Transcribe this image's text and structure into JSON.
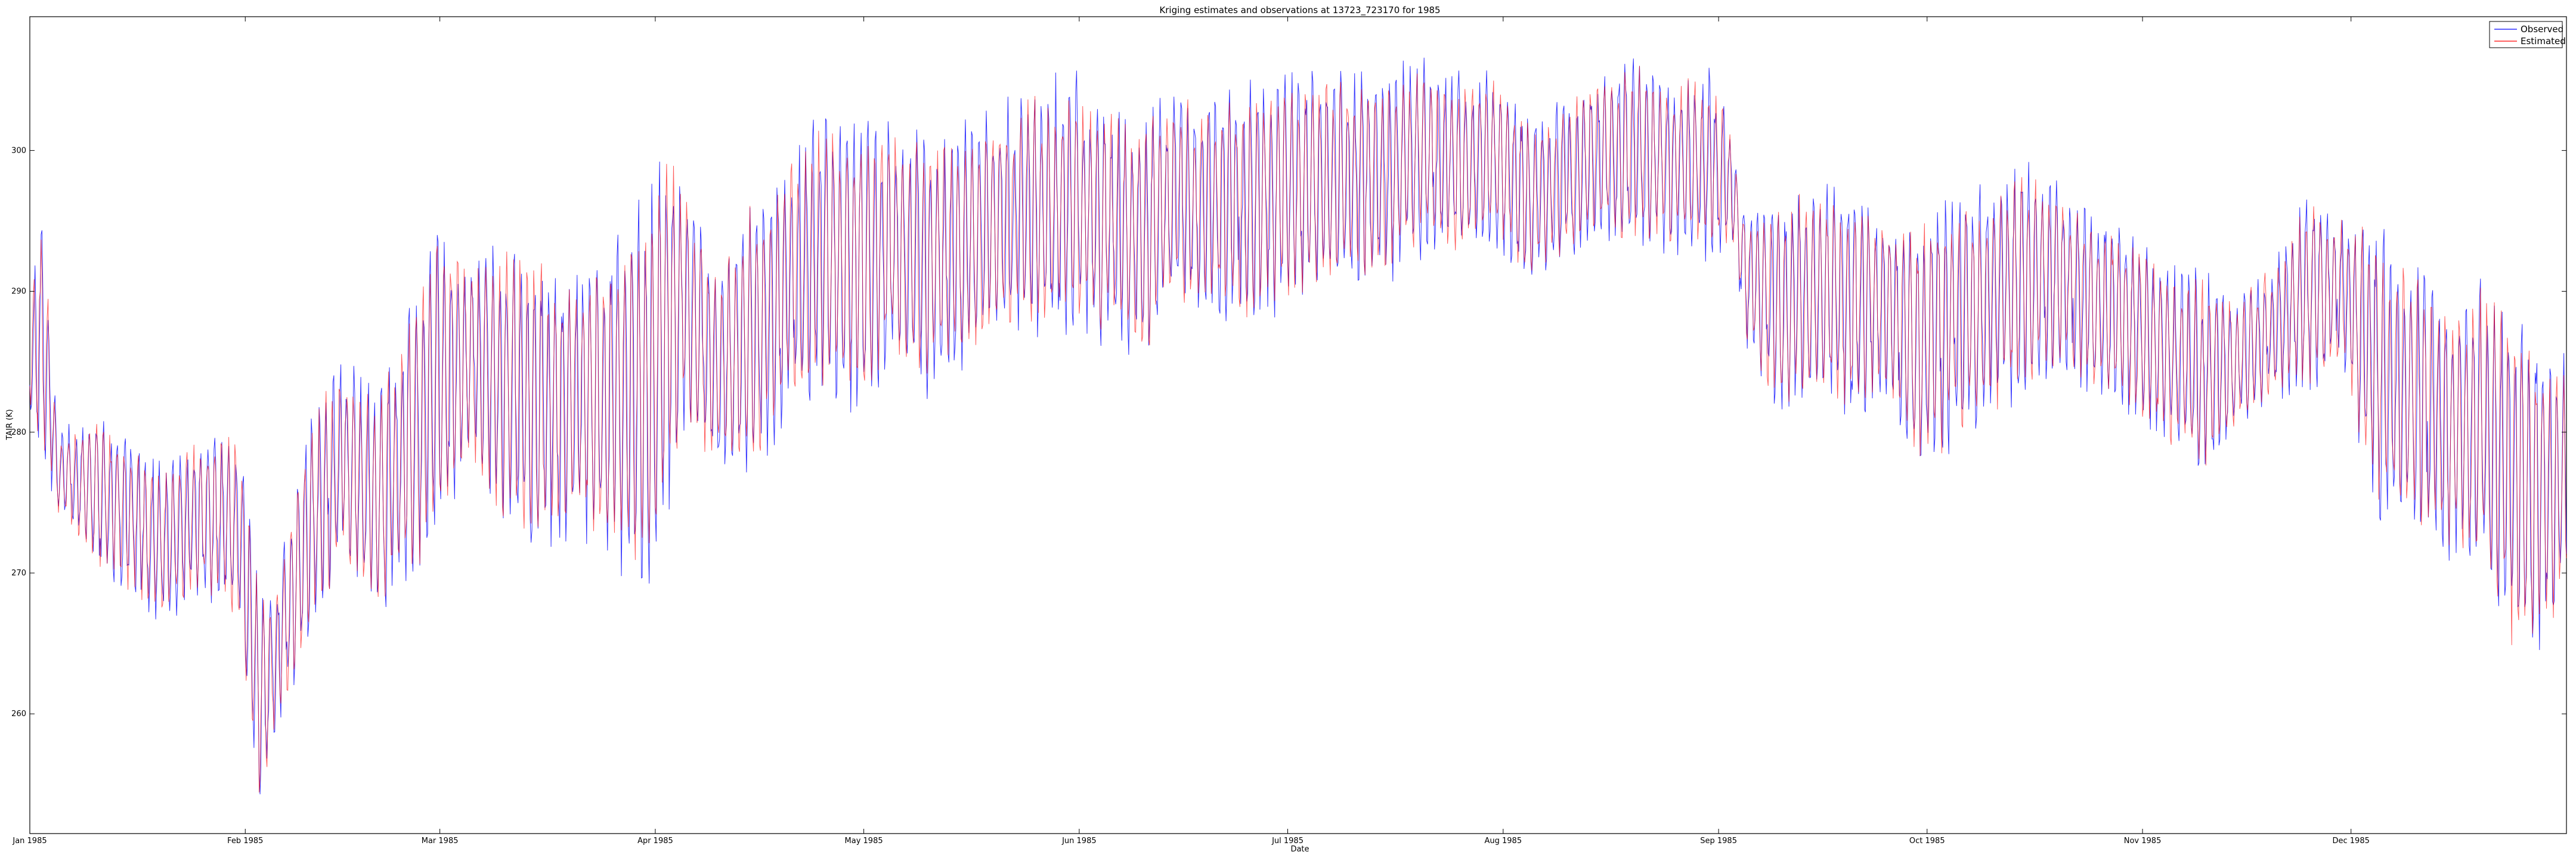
{
  "chart_data": {
    "type": "line",
    "title": "Kriging estimates and observations at 13723_723170 for 1985",
    "xlabel": "Date",
    "ylabel": "TAIR (K)",
    "x_range": [
      "1985-01-01",
      "1986-01-01"
    ],
    "ylim": [
      251.5,
      309.5
    ],
    "x_ticks": [
      {
        "date": "1985-01-01",
        "label": "Jan 1985"
      },
      {
        "date": "1985-02-01",
        "label": "Feb 1985"
      },
      {
        "date": "1985-03-01",
        "label": "Mar 1985"
      },
      {
        "date": "1985-04-01",
        "label": "Apr 1985"
      },
      {
        "date": "1985-05-01",
        "label": "May 1985"
      },
      {
        "date": "1985-06-01",
        "label": "Jun 1985"
      },
      {
        "date": "1985-07-01",
        "label": "Jul 1985"
      },
      {
        "date": "1985-08-01",
        "label": "Aug 1985"
      },
      {
        "date": "1985-09-01",
        "label": "Sep 1985"
      },
      {
        "date": "1985-10-01",
        "label": "Oct 1985"
      },
      {
        "date": "1985-11-01",
        "label": "Nov 1985"
      },
      {
        "date": "1985-12-01",
        "label": "Dec 1985"
      }
    ],
    "y_ticks": [
      260,
      270,
      280,
      290,
      300
    ],
    "grid": false,
    "legend_position": "top-right",
    "series_meta": [
      {
        "name": "Observed",
        "color": "#0000ff"
      },
      {
        "name": "Estimated",
        "color": "#ff0000"
      }
    ],
    "daily_envelope": {
      "dates": [
        "1985-01-01",
        "1985-01-03",
        "1985-01-05",
        "1985-01-10",
        "1985-01-15",
        "1985-01-20",
        "1985-01-25",
        "1985-01-31",
        "1985-02-03",
        "1985-02-05",
        "1985-02-10",
        "1985-02-15",
        "1985-02-20",
        "1985-02-25",
        "1985-03-01",
        "1985-03-05",
        "1985-03-10",
        "1985-03-15",
        "1985-03-20",
        "1985-03-25",
        "1985-03-31",
        "1985-04-03",
        "1985-04-05",
        "1985-04-10",
        "1985-04-15",
        "1985-04-20",
        "1985-04-25",
        "1985-04-30",
        "1985-05-05",
        "1985-05-10",
        "1985-05-15",
        "1985-05-20",
        "1985-05-25",
        "1985-05-31",
        "1985-06-05",
        "1985-06-10",
        "1985-06-15",
        "1985-06-20",
        "1985-06-25",
        "1985-06-30",
        "1985-07-05",
        "1985-07-10",
        "1985-07-15",
        "1985-07-20",
        "1985-07-25",
        "1985-07-31",
        "1985-08-05",
        "1985-08-10",
        "1985-08-15",
        "1985-08-20",
        "1985-08-25",
        "1985-08-31",
        "1985-09-03",
        "1985-09-05",
        "1985-09-10",
        "1985-09-15",
        "1985-09-20",
        "1985-09-25",
        "1985-09-30",
        "1985-10-05",
        "1985-10-10",
        "1985-10-15",
        "1985-10-20",
        "1985-10-25",
        "1985-10-31",
        "1985-11-05",
        "1985-11-10",
        "1985-11-15",
        "1985-11-20",
        "1985-11-25",
        "1985-11-30",
        "1985-12-05",
        "1985-12-10",
        "1985-12-15",
        "1985-12-20",
        "1985-12-25",
        "1985-12-31"
      ],
      "low": [
        280,
        277,
        274,
        270,
        268,
        266,
        268,
        266,
        252,
        258,
        264,
        270,
        266,
        268,
        272,
        278,
        272,
        270,
        272,
        270,
        268,
        272,
        280,
        276,
        276,
        280,
        282,
        280,
        284,
        282,
        284,
        286,
        286,
        286,
        286,
        284,
        288,
        288,
        287,
        288,
        289,
        290,
        290,
        292,
        292,
        293,
        290,
        292,
        293,
        292,
        292,
        292,
        292,
        286,
        280,
        282,
        280,
        282,
        276,
        278,
        280,
        282,
        284,
        282,
        280,
        278,
        276,
        280,
        282,
        282,
        284,
        272,
        272,
        270,
        268,
        262,
        266
      ],
      "high": [
        292,
        296,
        280,
        282,
        280,
        278,
        280,
        281,
        270,
        268,
        282,
        286,
        284,
        290,
        296,
        293,
        295,
        294,
        292,
        294,
        298,
        303,
        299,
        292,
        298,
        300,
        304,
        303,
        303,
        302,
        302,
        304,
        305,
        306,
        304,
        303,
        305,
        304,
        305,
        306,
        306,
        306,
        306,
        307,
        306,
        306,
        303,
        304,
        306,
        308,
        306,
        306,
        302,
        296,
        298,
        298,
        298,
        296,
        296,
        298,
        298,
        300,
        298,
        296,
        295,
        292,
        292,
        290,
        293,
        298,
        296,
        296,
        294,
        290,
        292,
        290,
        286
      ]
    }
  }
}
